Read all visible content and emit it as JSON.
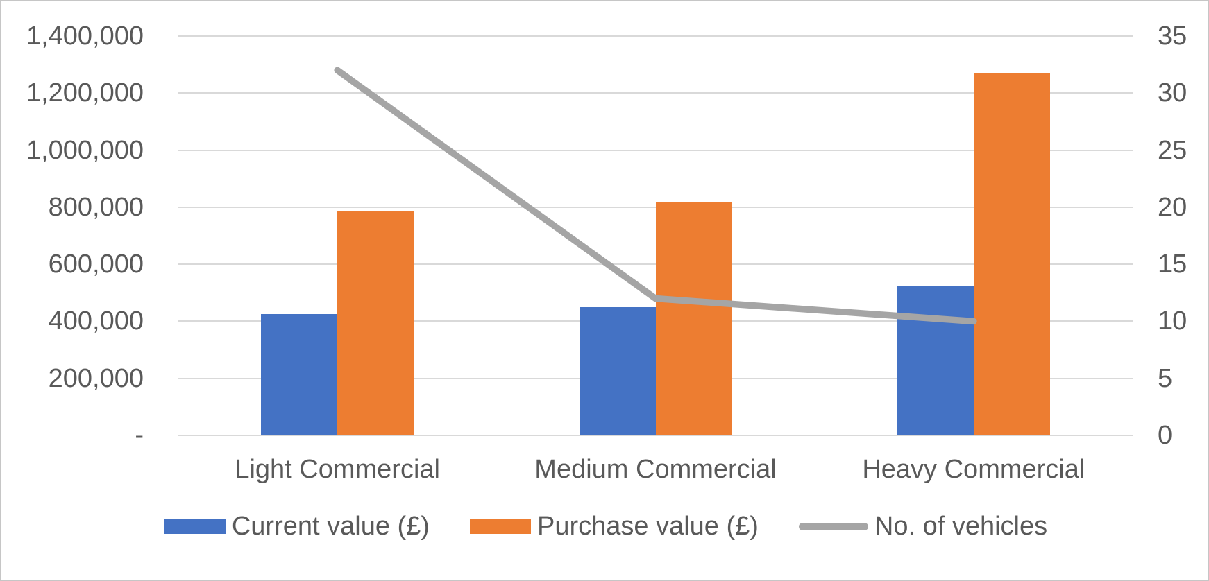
{
  "chart_data": {
    "type": "combo-bar-line",
    "title": "",
    "categories": [
      "Light Commercial",
      "Medium Commercial",
      "Heavy Commercial"
    ],
    "series": [
      {
        "name": "Current value (£)",
        "type": "bar",
        "axis": "left",
        "color": "#4472C4",
        "values": [
          425000,
          450000,
          525000
        ]
      },
      {
        "name": "Purchase value (£)",
        "type": "bar",
        "axis": "left",
        "color": "#ED7D31",
        "values": [
          785000,
          820000,
          1270000
        ]
      },
      {
        "name": "No. of vehicles",
        "type": "line",
        "axis": "right",
        "color": "#A5A5A5",
        "values": [
          32,
          12,
          10
        ]
      }
    ],
    "left_axis": {
      "min": 0,
      "max": 1400000,
      "step": 200000,
      "tick_labels": [
        "1,400,000",
        "1,200,000",
        "1,000,000",
        "800,000",
        "600,000",
        "400,000",
        "200,000",
        "-"
      ]
    },
    "right_axis": {
      "min": 0,
      "max": 35,
      "step": 5,
      "tick_labels": [
        "35",
        "30",
        "25",
        "20",
        "15",
        "10",
        "5",
        "0"
      ]
    },
    "grid": true,
    "legend_position": "bottom",
    "colors": {
      "grid": "#D9D9D9",
      "axis_text": "#595959",
      "background": "#FFFFFF",
      "frame_border": "#C6C6C6"
    }
  }
}
